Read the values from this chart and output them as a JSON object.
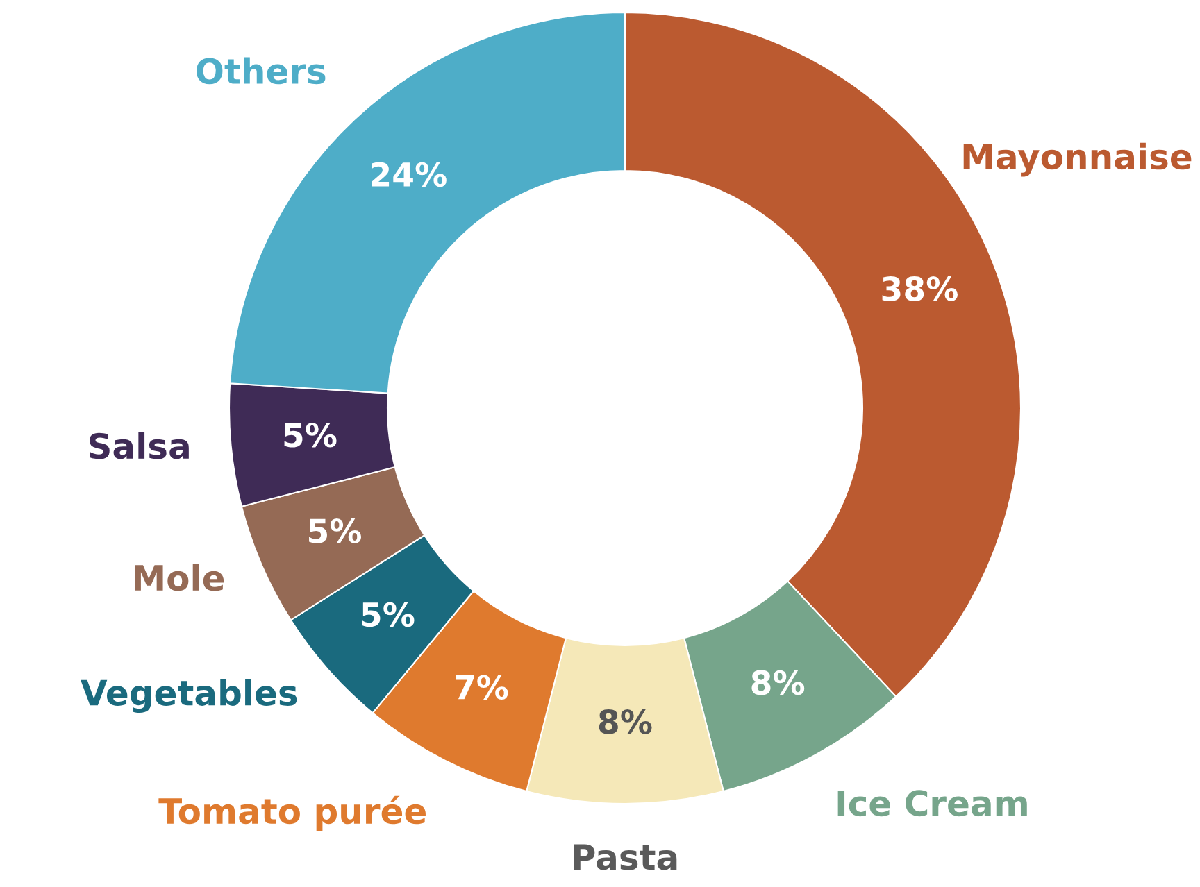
{
  "chart_data": {
    "type": "donut",
    "categories": [
      "Mayonnaise",
      "Ice Cream",
      "Pasta",
      "Tomato purée",
      "Vegetables",
      "Mole",
      "Salsa",
      "Others"
    ],
    "values": [
      38,
      8,
      8,
      7,
      5,
      5,
      5,
      24
    ],
    "colors": [
      "#bb5a30",
      "#76a58b",
      "#f5e8b8",
      "#df7a2e",
      "#1a6a7e",
      "#956a55",
      "#3f2b56",
      "#4eadc8"
    ],
    "value_labels": [
      "38%",
      "8%",
      "8%",
      "7%",
      "5%",
      "5%",
      "5%",
      "24%"
    ]
  }
}
